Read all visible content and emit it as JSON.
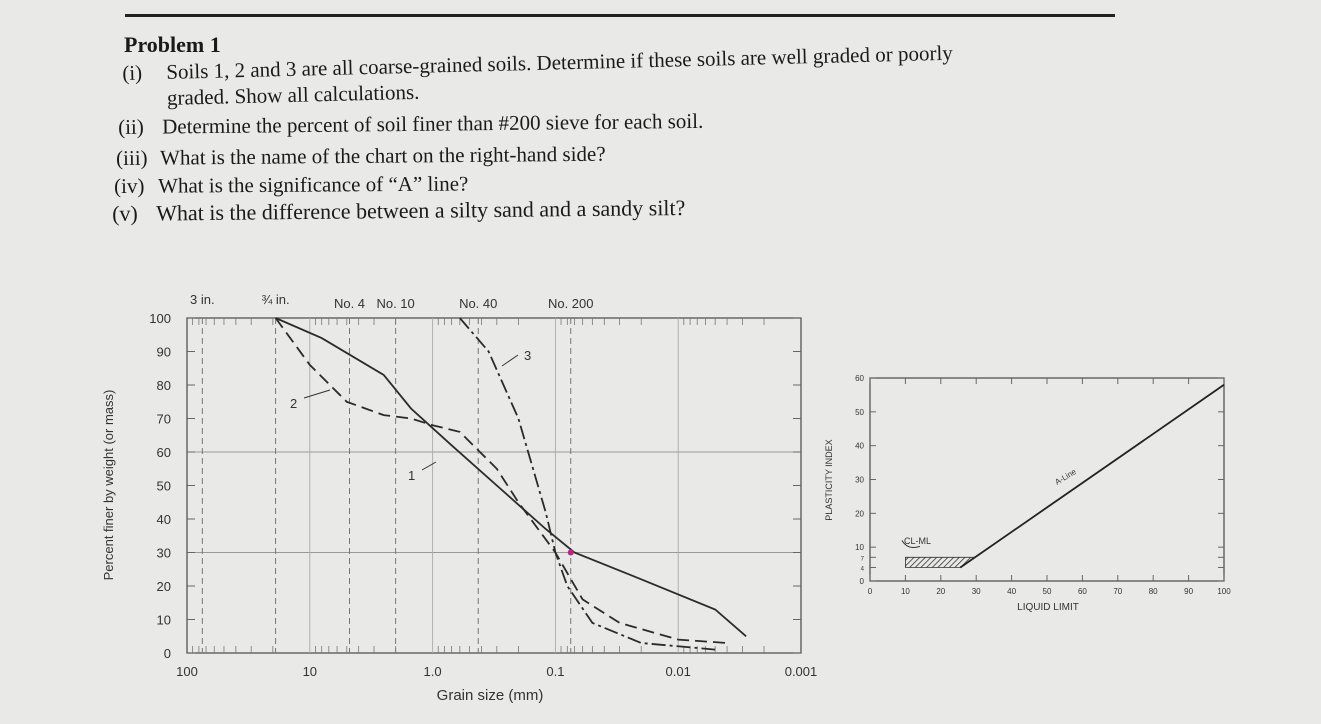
{
  "problem": {
    "title": "Problem 1",
    "questions": [
      {
        "num": "(i)",
        "text": "Soils 1, 2 and 3 are all coarse-grained soils. Determine if these soils are well graded or poorly",
        "cont": "graded. Show all calculations."
      },
      {
        "num": "(ii)",
        "text": "Determine the percent of soil finer than #200 sieve for each soil."
      },
      {
        "num": "(iii)",
        "text": "What is the name of the chart on the right-hand side?"
      },
      {
        "num": "(iv)",
        "text": "What is the significance of “A” line?"
      },
      {
        "num": "(v)",
        "text": "What is the difference between a silty sand and a sandy silt?"
      }
    ]
  },
  "chart_data": [
    {
      "type": "line",
      "xlabel": "Grain size (mm)",
      "ylabel": "Percent finer by weight (or mass)",
      "x_scale": "log",
      "x_reversed": true,
      "xlim": [
        100,
        0.001
      ],
      "ylim": [
        0,
        100
      ],
      "x_tick_labels": [
        "100",
        "10",
        "1.0",
        "0.1",
        "0.01",
        "0.001"
      ],
      "y_tick_labels": [
        "100",
        "90",
        "80",
        "70",
        "60",
        "50",
        "40",
        "30",
        "20",
        "10",
        "0"
      ],
      "sieves": [
        {
          "label": "3 in.",
          "size": 75
        },
        {
          "label": "¾ in.",
          "size": 19
        },
        {
          "label": "No. 4",
          "size": 4.75
        },
        {
          "label": "No. 10",
          "size": 2.0
        },
        {
          "label": "No. 40",
          "size": 0.425
        },
        {
          "label": "No. 200",
          "size": 0.075
        }
      ],
      "series": [
        {
          "name": "1",
          "x": [
            19,
            8,
            2.5,
            1.5,
            0.7,
            0.3,
            0.12,
            0.07,
            0.02,
            0.005,
            0.0028
          ],
          "y": [
            100,
            94,
            83,
            73,
            62,
            50,
            37,
            30,
            22,
            13,
            5
          ]
        },
        {
          "name": "2",
          "x": [
            19,
            10,
            5,
            2.5,
            1.5,
            1.0,
            0.6,
            0.3,
            0.2,
            0.1,
            0.06,
            0.03,
            0.01,
            0.004
          ],
          "y": [
            100,
            86,
            75,
            71,
            70,
            68,
            66,
            55,
            45,
            30,
            16,
            9,
            4,
            3
          ]
        },
        {
          "name": "3",
          "x": [
            0.6,
            0.35,
            0.2,
            0.12,
            0.1,
            0.08,
            0.05,
            0.02,
            0.005
          ],
          "y": [
            100,
            90,
            70,
            42,
            30,
            20,
            9,
            3,
            1
          ]
        }
      ]
    },
    {
      "type": "line",
      "title": "",
      "xlabel": "LIQUID LIMIT",
      "ylabel": "PLASTICITY INDEX",
      "xlim": [
        0,
        100
      ],
      "ylim": [
        0,
        60
      ],
      "x_tick_labels": [
        "0",
        "10",
        "20",
        "30",
        "40",
        "50",
        "60",
        "70",
        "80",
        "90",
        "100"
      ],
      "y_tick_labels": [
        "0",
        "4",
        "7",
        "10",
        "20",
        "30",
        "40",
        "50",
        "60"
      ],
      "series": [
        {
          "name": "A-Line",
          "x": [
            25.5,
            100
          ],
          "y": [
            4,
            58
          ]
        }
      ],
      "zone_label": "CL-ML",
      "line_label": "A-Line"
    }
  ]
}
